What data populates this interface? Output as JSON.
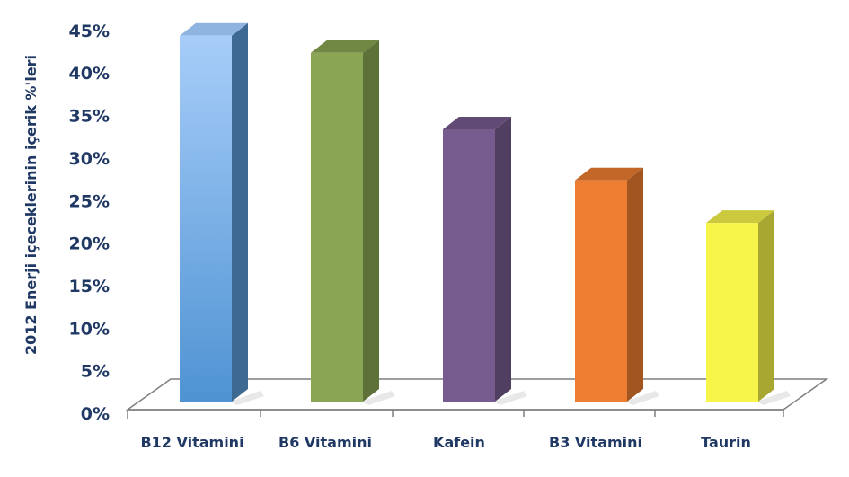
{
  "chart_data": {
    "type": "bar",
    "style": "3d-column",
    "ylabel": "2012 Enerji içeceklerinin içerik %'leri",
    "xlabel": "",
    "ylim": [
      0,
      45
    ],
    "ytick_step": 5,
    "ytick_labels": [
      "0%",
      "5%",
      "10%",
      "15%",
      "20%",
      "25%",
      "30%",
      "35%",
      "40%",
      "45%"
    ],
    "categories": [
      "B12 Vitamini",
      "B6 Vitamini",
      "Kafein",
      "B3 Vitamini",
      "Taurin"
    ],
    "values": [
      43,
      41,
      32,
      26,
      21
    ],
    "colors": [
      "#5b9bd5",
      "#8aa654",
      "#765c8e",
      "#ed7d31",
      "#f7f54a"
    ],
    "grid": false,
    "legend": "none"
  }
}
